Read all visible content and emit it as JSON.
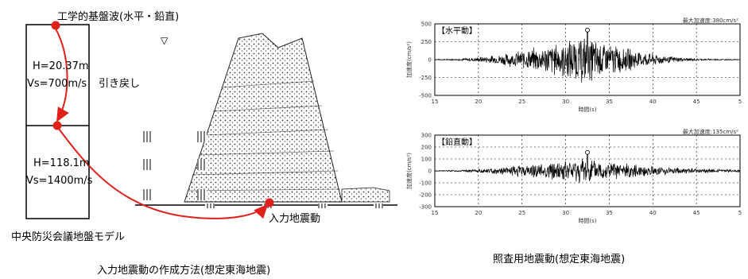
{
  "left_diagram": {
    "top_label": "工学的基盤波(水平・鉛直)",
    "layer1_h": "H=20.37m",
    "layer1_vs": "Vs=700m/s",
    "layer2_h": "H=118.1m",
    "layer2_vs": "Vs=1400m/s",
    "pullback_label": "引き戻し",
    "input_label": "入力地震動",
    "model_label": "中央防災会議地盤モデル",
    "caption": "入力地震動の作成方法(想定東海地震)",
    "water_symbol": "▽"
  },
  "right_panel": {
    "caption": "照査用地震動(想定東海地震)",
    "colors": {
      "arrow": "#e0201a",
      "trace": "#000000"
    }
  },
  "chart_data": [
    {
      "type": "line",
      "title": "【水平動】",
      "annotation": "最大加速度:380cm/s²",
      "ylabel": "加速度(cm/s²)",
      "xlabel": "時間(s)",
      "xlim": [
        15,
        50
      ],
      "ylim": [
        -500,
        500
      ],
      "x_ticks": [
        "15",
        "20",
        "25",
        "30",
        "35",
        "40",
        "45",
        "5"
      ],
      "y_ticks": [
        "500",
        "250",
        "0",
        "-250",
        "-500"
      ],
      "grid": true,
      "peak": {
        "x": 32.5,
        "y": 380
      },
      "envelope": [
        [
          15,
          5
        ],
        [
          18,
          15
        ],
        [
          20,
          40
        ],
        [
          22,
          70
        ],
        [
          24,
          110
        ],
        [
          26,
          170
        ],
        [
          28,
          230
        ],
        [
          30,
          290
        ],
        [
          32,
          360
        ],
        [
          33,
          330
        ],
        [
          35,
          250
        ],
        [
          37,
          180
        ],
        [
          39,
          120
        ],
        [
          41,
          70
        ],
        [
          43,
          35
        ],
        [
          45,
          15
        ],
        [
          50,
          5
        ]
      ]
    },
    {
      "type": "line",
      "title": "【鉛直動】",
      "annotation": "最大加速度:135cm/s²",
      "ylabel": "加速度(cm/s²)",
      "xlabel": "時間(s)",
      "xlim": [
        15,
        50
      ],
      "ylim": [
        -300,
        300
      ],
      "x_ticks": [
        "15",
        "20",
        "25",
        "30",
        "35",
        "40",
        "45",
        "5"
      ],
      "y_ticks": [
        "300",
        "200",
        "100",
        "0",
        "-100",
        "-200",
        "-300"
      ],
      "grid": true,
      "peak": {
        "x": 32.5,
        "y": 135
      },
      "envelope": [
        [
          15,
          3
        ],
        [
          18,
          8
        ],
        [
          20,
          15
        ],
        [
          22,
          30
        ],
        [
          24,
          45
        ],
        [
          26,
          60
        ],
        [
          28,
          75
        ],
        [
          30,
          95
        ],
        [
          32,
          125
        ],
        [
          33,
          110
        ],
        [
          35,
          85
        ],
        [
          37,
          65
        ],
        [
          39,
          50
        ],
        [
          41,
          40
        ],
        [
          43,
          30
        ],
        [
          45,
          22
        ],
        [
          50,
          10
        ]
      ]
    }
  ]
}
